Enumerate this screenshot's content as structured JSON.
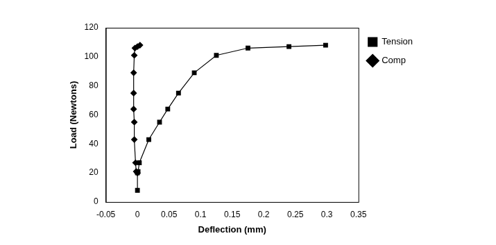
{
  "chart_data": {
    "type": "line",
    "x_label": "Deflection (mm)",
    "y_label": "Load (Newtons)",
    "xlim": [
      -0.05,
      0.35
    ],
    "xticks": [
      -0.05,
      0,
      0.05,
      0.1,
      0.15,
      0.2,
      0.25,
      0.3,
      0.35
    ],
    "ylim": [
      0,
      120
    ],
    "yticks": [
      0,
      20,
      40,
      60,
      80,
      100,
      120
    ],
    "grid": false,
    "legend": "right",
    "series": [
      {
        "name": "Tension",
        "color": "#000000",
        "marker": "square",
        "line_style": "solid",
        "x": [
          0,
          0,
          0.001,
          0.003,
          0.018,
          0.035,
          0.048,
          0.065,
          0.09,
          0.125,
          0.175,
          0.24,
          0.298
        ],
        "values": [
          8,
          20,
          21,
          27,
          43,
          55,
          64,
          75,
          89,
          101,
          106,
          107,
          108
        ]
      },
      {
        "name": "Comp",
        "color": "#000000",
        "marker": "diamond",
        "line_style": "solid",
        "x": [
          0,
          -0.002,
          -0.003,
          -0.005,
          -0.005,
          -0.006,
          -0.006,
          -0.006,
          -0.005,
          -0.004,
          0,
          0.004
        ],
        "values": [
          20,
          21,
          27,
          43,
          55,
          64,
          75,
          89,
          101,
          106,
          107,
          108
        ]
      }
    ]
  }
}
